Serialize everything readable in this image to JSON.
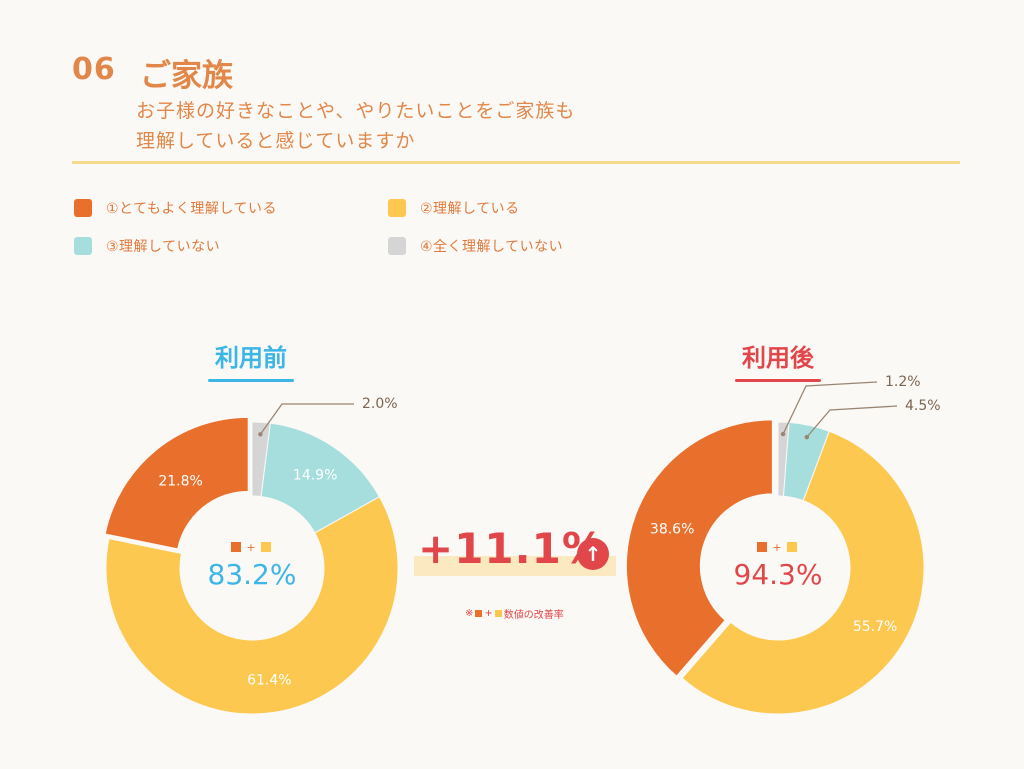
{
  "header": {
    "number": "06",
    "title": "ご家族",
    "question_line1": "お子様の好きなことや、やりたいことをご家族も",
    "question_line2": "理解していると感じていますか"
  },
  "legend": [
    {
      "label": "①とてもよく理解している",
      "color": "#e86f2c"
    },
    {
      "label": "②理解している",
      "color": "#fcc84f"
    },
    {
      "label": "③理解していない",
      "color": "#a6dede"
    },
    {
      "label": "④全く理解していない",
      "color": "#d5d5d5"
    }
  ],
  "improvement": {
    "value": "+11.1%",
    "arrow": "↑",
    "note_prefix": "※",
    "note_plus": "+",
    "note_suffix": "数値の改善率"
  },
  "chart_data": [
    {
      "type": "pie",
      "title": "利用前",
      "title_color": "#3cb6e6",
      "center_label": "83.2%",
      "center_color": "#3cb6e6",
      "center_plus": "+",
      "categories": [
        "①とてもよく理解している",
        "②理解している",
        "③理解していない",
        "④全く理解していない"
      ],
      "values": [
        21.8,
        61.4,
        14.9,
        2.0
      ],
      "labels": [
        "21.8%",
        "61.4%",
        "14.9%",
        "2.0%"
      ]
    },
    {
      "type": "pie",
      "title": "利用後",
      "title_color": "#e1474a",
      "center_label": "94.3%",
      "center_color": "#e1474a",
      "center_plus": "+",
      "categories": [
        "①とてもよく理解している",
        "②理解している",
        "③理解していない",
        "④全く理解していない"
      ],
      "values": [
        38.6,
        55.7,
        4.5,
        1.2
      ],
      "labels": [
        "38.6%",
        "55.7%",
        "4.5%",
        "1.2%"
      ]
    }
  ]
}
